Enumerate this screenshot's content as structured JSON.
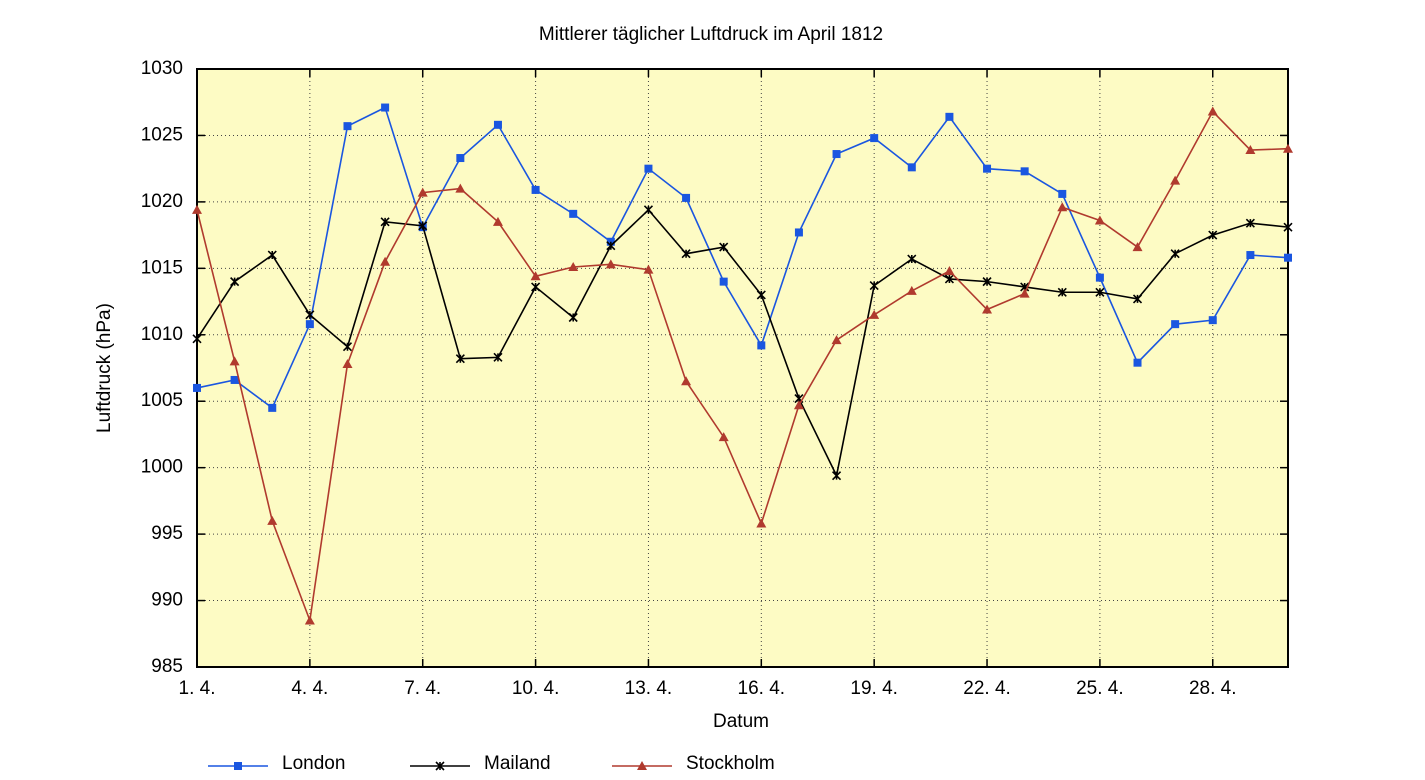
{
  "chart_data": {
    "type": "line",
    "title": "Mittlerer täglicher Luftdruck im April 1812",
    "x_label": "Datum",
    "y_label": "Luftdruck (hPa)",
    "categories": [
      "1. 4.",
      null,
      null,
      "4. 4.",
      null,
      null,
      "7. 4.",
      null,
      null,
      "10. 4.",
      null,
      null,
      "13. 4.",
      null,
      null,
      "16. 4.",
      null,
      null,
      "19. 4.",
      null,
      null,
      "22. 4.",
      null,
      null,
      "25. 4.",
      null,
      null,
      "28. 4.",
      null,
      null
    ],
    "series": [
      {
        "name": "London",
        "color": "#1a56e0",
        "marker": "square",
        "values": [
          1006.0,
          1006.6,
          1004.5,
          1010.8,
          1025.7,
          1027.1,
          1018.1,
          1023.3,
          1025.8,
          1020.9,
          1019.1,
          1017.0,
          1022.5,
          1020.3,
          1014.0,
          1009.2,
          1017.7,
          1023.6,
          1024.8,
          1022.6,
          1026.4,
          1022.5,
          1022.3,
          1020.6,
          1014.3,
          1007.9,
          1010.8,
          1011.1,
          1016.0,
          1015.8
        ]
      },
      {
        "name": "Mailand",
        "color": "#000000",
        "marker": "star",
        "values": [
          1009.7,
          1014.0,
          1016.0,
          1011.5,
          1009.1,
          1018.5,
          1018.2,
          1008.2,
          1008.3,
          1013.6,
          1011.3,
          1016.7,
          1019.4,
          1016.1,
          1016.6,
          1013.0,
          1005.2,
          999.4,
          1013.7,
          1015.7,
          1014.2,
          1014.0,
          1013.6,
          1013.2,
          1013.2,
          1012.7,
          1016.1,
          1017.5,
          1018.4,
          1018.1
        ]
      },
      {
        "name": "Stockholm",
        "color": "#b03a2e",
        "marker": "triangle",
        "values": [
          1019.4,
          1008.0,
          996.0,
          988.5,
          1007.8,
          1015.5,
          1020.7,
          1021.0,
          1018.5,
          1014.4,
          1015.1,
          1015.3,
          1014.9,
          1006.5,
          1002.3,
          995.8,
          1004.7,
          1009.6,
          1011.5,
          1013.3,
          1014.8,
          1011.9,
          1013.1,
          1019.6,
          1018.6,
          1016.6,
          1021.6,
          1026.8,
          1023.9,
          1024.0
        ]
      }
    ],
    "ylim": [
      985,
      1030
    ],
    "yticks": [
      985,
      990,
      995,
      1000,
      1005,
      1010,
      1015,
      1020,
      1025,
      1030
    ],
    "grid": true,
    "legend": "bottom",
    "plot_background": "#fdfbc4"
  }
}
